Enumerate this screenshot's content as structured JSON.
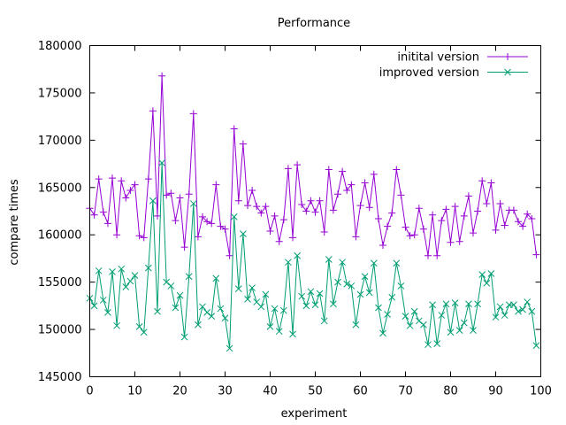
{
  "chart_data": {
    "type": "line",
    "title": "Performance",
    "xlabel": "experiment",
    "ylabel": "compare times",
    "xlim": [
      0,
      100
    ],
    "ylim": [
      145000,
      180000
    ],
    "xticks": [
      0,
      10,
      20,
      30,
      40,
      50,
      60,
      70,
      80,
      90,
      100
    ],
    "yticks": [
      145000,
      150000,
      155000,
      160000,
      165000,
      170000,
      175000,
      180000
    ],
    "grid": false,
    "legend_position": "top-right",
    "x": [
      0,
      1,
      2,
      3,
      4,
      5,
      6,
      7,
      8,
      9,
      10,
      11,
      12,
      13,
      14,
      15,
      16,
      17,
      18,
      19,
      20,
      21,
      22,
      23,
      24,
      25,
      26,
      27,
      28,
      29,
      30,
      31,
      32,
      33,
      34,
      35,
      36,
      37,
      38,
      39,
      40,
      41,
      42,
      43,
      44,
      45,
      46,
      47,
      48,
      49,
      50,
      51,
      52,
      53,
      54,
      55,
      56,
      57,
      58,
      59,
      60,
      61,
      62,
      63,
      64,
      65,
      66,
      67,
      68,
      69,
      70,
      71,
      72,
      73,
      74,
      75,
      76,
      77,
      78,
      79,
      80,
      81,
      82,
      83,
      84,
      85,
      86,
      87,
      88,
      89,
      90,
      91,
      92,
      93,
      94,
      95,
      96,
      97,
      98,
      99
    ],
    "series": [
      {
        "name": "initital version",
        "color": "#9400d3",
        "marker": "plus",
        "values": [
          162800,
          162100,
          165900,
          162400,
          161200,
          166000,
          160000,
          165700,
          163900,
          164700,
          165300,
          159900,
          159700,
          165900,
          173100,
          162000,
          176800,
          164200,
          164400,
          161500,
          163900,
          158700,
          164300,
          172800,
          159800,
          161900,
          161400,
          161200,
          165300,
          160900,
          160600,
          157800,
          171200,
          163600,
          169600,
          163100,
          164700,
          163000,
          162300,
          163000,
          160400,
          162000,
          159300,
          161600,
          167000,
          159700,
          167400,
          163200,
          162500,
          163600,
          162400,
          163600,
          160300,
          166900,
          162600,
          164300,
          166700,
          164700,
          165300,
          159800,
          163100,
          165500,
          162900,
          166400,
          161700,
          158900,
          160900,
          162300,
          166900,
          164200,
          160800,
          159900,
          160000,
          162800,
          160600,
          157800,
          162100,
          157800,
          161500,
          162700,
          159200,
          163000,
          159300,
          162000,
          164100,
          160200,
          162500,
          165700,
          163300,
          165500,
          160500,
          163300,
          161000,
          162600,
          162600,
          161400,
          160900,
          162200,
          161700,
          157900
        ]
      },
      {
        "name": "improved version",
        "color": "#009e73",
        "marker": "cross",
        "values": [
          153300,
          152500,
          156200,
          153100,
          151800,
          156100,
          150400,
          156400,
          154500,
          155100,
          155700,
          150300,
          149700,
          156500,
          163600,
          151900,
          167600,
          155000,
          154600,
          152300,
          153600,
          149200,
          155600,
          163300,
          150500,
          152400,
          151800,
          151400,
          155400,
          152200,
          151200,
          148000,
          161900,
          154300,
          160100,
          153200,
          154400,
          152900,
          152400,
          153700,
          150300,
          152200,
          149800,
          152000,
          157100,
          149500,
          157800,
          153500,
          152500,
          154000,
          152600,
          153800,
          150900,
          157400,
          152700,
          155000,
          157100,
          154800,
          154600,
          150500,
          153700,
          155600,
          153900,
          157000,
          152300,
          149600,
          151600,
          153400,
          157000,
          154600,
          151400,
          150400,
          151900,
          150900,
          150500,
          148400,
          152600,
          148500,
          151500,
          152700,
          149700,
          152800,
          149900,
          150700,
          152700,
          149900,
          152700,
          155800,
          154900,
          155900,
          151300,
          152400,
          151500,
          152600,
          152600,
          151900,
          152100,
          152900,
          151900,
          148300
        ]
      }
    ]
  }
}
